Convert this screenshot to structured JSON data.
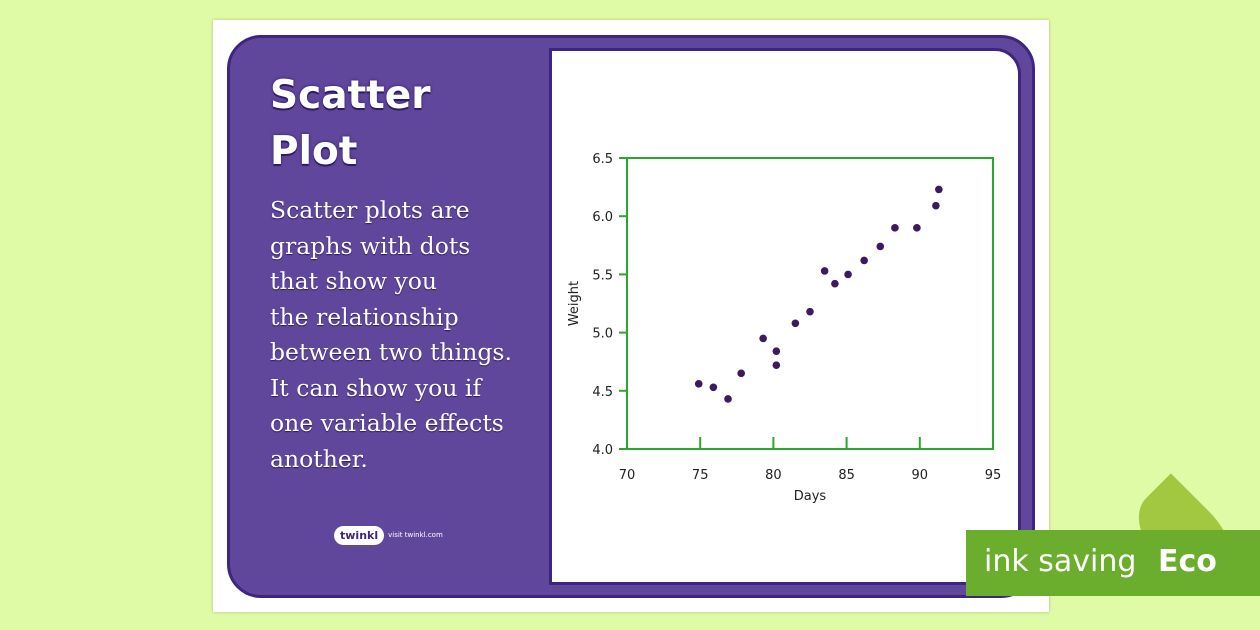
{
  "card": {
    "title_line1": "Scatter",
    "title_line2": "Plot",
    "description_lines": [
      "Scatter plots are",
      "graphs with dots",
      "that show you",
      "the relationship",
      "between two things.",
      "It can show you if",
      "one variable effects",
      "another."
    ],
    "logo_text": "twinkl",
    "logo_site": "visit twinkl.com"
  },
  "badge": {
    "text": "ink saving",
    "label": "Eco"
  },
  "colors": {
    "background": "#e0fba5",
    "panel": "#61479c",
    "panel_border": "#3e2483",
    "axis": "#2aa82a",
    "points": "#3b1a5e",
    "badge": "#6bae2d"
  },
  "chart_data": {
    "type": "scatter",
    "title": "",
    "xlabel": "Days",
    "ylabel": "Weight",
    "xlim": [
      70,
      95
    ],
    "ylim": [
      4.0,
      6.5
    ],
    "x_ticks": [
      70,
      75,
      80,
      85,
      90,
      95
    ],
    "y_ticks": [
      4.0,
      4.5,
      5.0,
      5.5,
      6.0,
      6.5
    ],
    "x_tick_labels": [
      "70",
      "75",
      "80",
      "85",
      "90",
      "95"
    ],
    "y_tick_labels": [
      "4.0",
      "4.5",
      "5.0",
      "5.5",
      "6.0",
      "6.5"
    ],
    "grid": false,
    "points": [
      {
        "x": 74.9,
        "y": 4.56
      },
      {
        "x": 75.9,
        "y": 4.53
      },
      {
        "x": 76.9,
        "y": 4.43
      },
      {
        "x": 77.8,
        "y": 4.65
      },
      {
        "x": 79.3,
        "y": 4.95
      },
      {
        "x": 80.2,
        "y": 4.84
      },
      {
        "x": 80.2,
        "y": 4.72
      },
      {
        "x": 81.5,
        "y": 5.08
      },
      {
        "x": 82.5,
        "y": 5.18
      },
      {
        "x": 83.5,
        "y": 5.53
      },
      {
        "x": 84.2,
        "y": 5.42
      },
      {
        "x": 85.1,
        "y": 5.5
      },
      {
        "x": 86.2,
        "y": 5.62
      },
      {
        "x": 87.3,
        "y": 5.74
      },
      {
        "x": 88.3,
        "y": 5.9
      },
      {
        "x": 89.8,
        "y": 5.9
      },
      {
        "x": 91.1,
        "y": 6.09
      },
      {
        "x": 91.3,
        "y": 6.23
      }
    ]
  }
}
